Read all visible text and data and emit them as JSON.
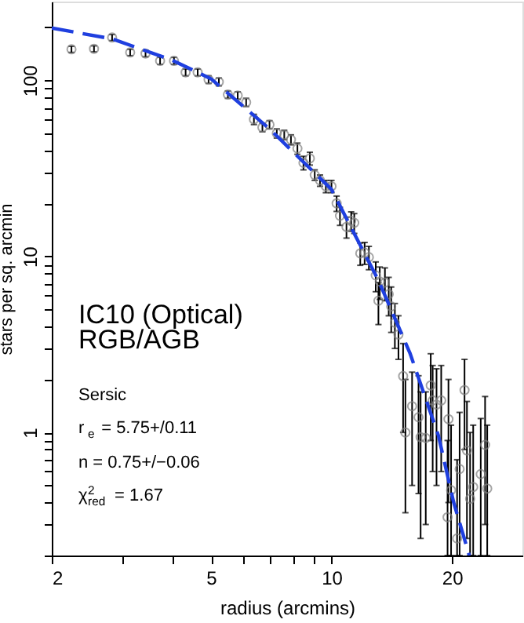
{
  "chart_data": {
    "type": "scatter",
    "xlabel": "radius (arcmins)",
    "ylabel": "stars per sq. arcmin",
    "annotations": [
      "IC10 (Optical)",
      "RGB/AGB",
      "Sersic",
      "r$_{e}$ = 5.75+/0.11",
      "n = 0.75+/−0.06",
      "χ$^{2}$$_{red}$ = 1.67"
    ],
    "log": "xy",
    "grid": false,
    "marker": "circle",
    "xlim": [
      2,
      30
    ],
    "ylim": [
      0.2,
      280
    ],
    "xticks": [
      2,
      {
        "value": 3,
        "label": null
      },
      {
        "value": 4,
        "label": null
      },
      5,
      {
        "value": 6,
        "label": null
      },
      {
        "value": 7,
        "label": null
      },
      {
        "value": 8,
        "label": null
      },
      {
        "value": 9,
        "label": null
      },
      10,
      20
    ],
    "yticks": [
      {
        "value": 0.2,
        "label": null
      },
      {
        "value": 0.3,
        "label": null
      },
      {
        "value": 0.4,
        "label": null
      },
      {
        "value": 0.5,
        "label": null
      },
      {
        "value": 0.6,
        "label": null
      },
      {
        "value": 0.7,
        "label": null
      },
      {
        "value": 0.8,
        "label": null
      },
      {
        "value": 0.9,
        "label": null
      },
      1,
      {
        "value": 2,
        "label": null
      },
      {
        "value": 3,
        "label": null
      },
      {
        "value": 4,
        "label": null
      },
      {
        "value": 5,
        "label": null
      },
      {
        "value": 6,
        "label": null
      },
      {
        "value": 7,
        "label": null
      },
      {
        "value": 8,
        "label": null
      },
      {
        "value": 9,
        "label": null
      },
      10,
      {
        "value": 20,
        "label": null
      },
      {
        "value": 30,
        "label": null
      },
      {
        "value": 40,
        "label": null
      },
      {
        "value": 50,
        "label": null
      },
      {
        "value": 60,
        "label": null
      },
      {
        "value": 70,
        "label": null
      },
      {
        "value": 80,
        "label": null
      },
      {
        "value": 90,
        "label": null
      },
      100,
      {
        "value": 200,
        "label": null
      }
    ],
    "x": [
      2.24,
      2.55,
      2.83,
      3.14,
      3.43,
      3.73,
      4.04,
      4.32,
      4.63,
      4.93,
      5.23,
      5.51,
      5.83,
      6.12,
      6.4,
      6.72,
      7.0,
      7.3,
      7.62,
      7.92,
      8.22,
      8.51,
      8.83,
      9.08,
      9.36,
      9.68,
      10.0,
      10.3,
      10.5,
      10.9,
      11.2,
      11.4,
      11.8,
      12.1,
      12.4,
      12.9,
      13.2,
      13.6,
      13.9,
      13.1,
      14.1,
      14.4,
      14.7,
      15.1,
      15.3,
      15.9,
      16.5,
      16.7,
      17.2,
      17.7,
      17.9,
      18.3,
      18.8,
      19.6,
      19.5,
      19.9,
      20.6,
      20.9,
      21.5,
      21.8,
      22.2,
      22.6,
      23.6,
      24.2,
      24.5
    ],
    "series": [
      {
        "color": "#808080",
        "values": [
          150,
          151,
          175,
          144,
          142,
          129,
          129,
          111,
          111,
          101,
          98,
          83,
          82,
          75,
          60,
          54,
          56,
          50,
          49,
          46,
          41,
          34,
          36,
          29,
          27,
          25,
          25,
          20,
          17,
          14.7,
          15.9,
          15.5,
          10.4,
          10.5,
          9.9,
          7.8,
          7.2,
          7.1,
          6.1,
          5.6,
          5.2,
          4.2,
          3.6,
          2.09,
          1.0,
          1.41,
          1.22,
          0.94,
          0.93,
          1.85,
          1.52,
          1.44,
          1.52,
          1.19,
          0.33,
          0.47,
          0.25,
          0.62,
          1.74,
          0.79,
          0.42,
          0.49,
          0.58,
          0.85,
          0.48
        ],
        "errors": [
          6,
          6,
          7,
          6,
          6,
          6,
          6,
          5,
          5,
          5,
          5,
          4,
          4,
          4,
          4,
          3,
          3,
          3,
          3,
          3,
          3,
          3,
          3,
          2,
          2,
          2,
          2,
          2,
          2,
          2,
          2,
          2,
          1.5,
          1.5,
          1.5,
          1.5,
          1.5,
          1.5,
          1.5,
          1.5,
          1.5,
          1.2,
          1.0,
          [
            1.0,
            3.2
          ],
          [
            0.35,
            2.0
          ],
          [
            0.5,
            2.2
          ],
          [
            0.45,
            2.1
          ],
          [
            0.25,
            1.7
          ],
          [
            0.3,
            1.7
          ],
          [
            0.9,
            2.8
          ],
          [
            0.6,
            2.4
          ],
          [
            0.5,
            2.3
          ],
          [
            0.6,
            2.4
          ],
          [
            0.4,
            2.0
          ],
          [
            0.2,
            0.9
          ],
          [
            0.2,
            1.1
          ],
          [
            0.2,
            0.7
          ],
          [
            0.2,
            1.3
          ],
          [
            0.8,
            2.6
          ],
          [
            0.25,
            1.5
          ],
          [
            0.2,
            1.0
          ],
          [
            0.2,
            1.1
          ],
          [
            0.2,
            1.2
          ],
          [
            0.3,
            1.6
          ],
          [
            0.2,
            1.1
          ]
        ]
      },
      {
        "type": "line",
        "color": "#1f3fdf",
        "line_style": "dashed",
        "marker": "none",
        "x": [
          2,
          2.83,
          4,
          5,
          7,
          10,
          13.1,
          15.7,
          18.5,
          20.2,
          22.1
        ],
        "values": [
          198,
          172,
          130,
          102,
          53,
          24,
          7.3,
          2.83,
          0.96,
          0.4,
          0.2
        ]
      }
    ]
  }
}
